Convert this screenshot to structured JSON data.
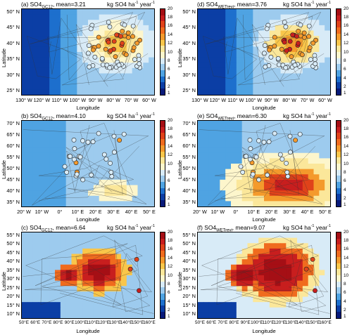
{
  "units_prefix": "kg SO4 ha",
  "units_exp1": "-1",
  "units_mid": " year",
  "units_exp2": "-1",
  "ylabel": "Latitude",
  "xlabel": "Longitude",
  "colorbar": {
    "ticks": [
      "20",
      "18",
      "16",
      "14",
      "12",
      "10",
      "8",
      "6",
      "4",
      "2",
      "1"
    ],
    "colors": [
      "#a50f15",
      "#c81e1e",
      "#e0421a",
      "#f06b1e",
      "#f49a2c",
      "#f9c64a",
      "#fbe79a",
      "#fdf6cc",
      "#d8ebf7",
      "#9dcbee",
      "#4fa3e2",
      "#1d6fcd",
      "#0b3ea5",
      "#081a7a"
    ]
  },
  "panels": [
    {
      "id": "a",
      "prefix": "(a) SO4",
      "sub": "GC12",
      "suffix": ", mean=3.21",
      "lat_ticks": [
        "50° N",
        "45° N",
        "40° N",
        "35° N",
        "30° N",
        "25° N"
      ],
      "lon_ticks": [
        "130° W",
        "120° W",
        "110° W",
        "100° W",
        "90° W",
        "80° W",
        "70° W",
        "60° W"
      ]
    },
    {
      "id": "d",
      "prefix": "(d) SO4",
      "sub": "WETrevi",
      "suffix": ", mean=3.76",
      "lat_ticks": [
        "50° N",
        "45° N",
        "40° N",
        "35° N",
        "30° N",
        "25° N"
      ],
      "lon_ticks": [
        "130° W",
        "120° W",
        "110° W",
        "100° W",
        "90° W",
        "80° W",
        "70° W",
        "60° W"
      ]
    },
    {
      "id": "b",
      "prefix": "(b) SO4",
      "sub": "GC12",
      "suffix": ", mean=4.10",
      "lat_ticks": [
        "70° N",
        "65° N",
        "60° N",
        "55° N",
        "50° N",
        "45° N",
        "40° N",
        "35° N"
      ],
      "lon_ticks": [
        "20° W",
        "10° W",
        "0°",
        "10° E",
        "20° E",
        "30° E",
        "40° E",
        "50° E"
      ]
    },
    {
      "id": "e",
      "prefix": "(e) SO4",
      "sub": "WETrevi",
      "suffix": ", mean=6.30",
      "lat_ticks": [
        "70° N",
        "65° N",
        "60° N",
        "55° N",
        "50° N",
        "45° N",
        "40° N",
        "35° N"
      ],
      "lon_ticks": [
        "20° W",
        "10° W",
        "0°",
        "10° E",
        "20° E",
        "30° E",
        "40° E",
        "50° E"
      ]
    },
    {
      "id": "c",
      "prefix": "(c) SO4",
      "sub": "GC12",
      "suffix": ", mean=6.64",
      "lat_ticks": [
        "55° N",
        "50° N",
        "45° N",
        "40° N",
        "35° N",
        "30° N",
        "25° N",
        "20° N",
        "15° N",
        "10° N"
      ],
      "lon_ticks": [
        "50°E",
        "60°E",
        "70°E",
        "80°E",
        "90°E",
        "100°E",
        "110°E",
        "120°E",
        "130°E",
        "140°E",
        "150°E",
        "160°E"
      ]
    },
    {
      "id": "f",
      "prefix": "(f) SO4",
      "sub": "WETrevi",
      "suffix": ", mean=9.07",
      "lat_ticks": [
        "55° N",
        "50° N",
        "45° N",
        "40° N",
        "35° N",
        "30° N",
        "25° N",
        "20° N",
        "15° N",
        "10° N"
      ],
      "lon_ticks": [
        "50°E",
        "60°E",
        "70°E",
        "80°E",
        "90°E",
        "100°E",
        "110°E",
        "120°E",
        "130°E",
        "140°E",
        "150°E",
        "160°E"
      ]
    }
  ]
}
